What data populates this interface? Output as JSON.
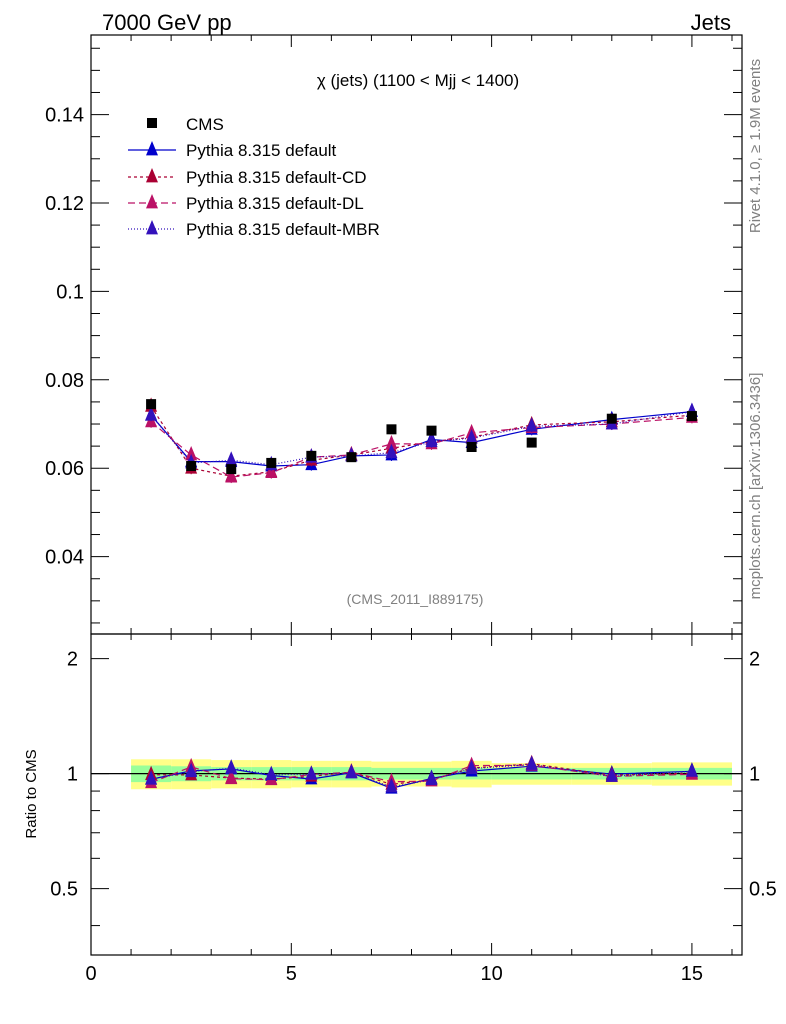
{
  "header": {
    "left": "7000 GeV pp",
    "right": "Jets"
  },
  "side_text": {
    "rivet": "Rivet 4.1.0, ≥ 1.9M events",
    "mcplots": "mcplots.cern.ch [arXiv:1306.3436]"
  },
  "chart_data": {
    "type": "scatter",
    "title": "χ (jets) (1100 < Mjj < 1400)",
    "watermark": "(CMS_2011_I889175)",
    "xlabel": "",
    "ylabel": "",
    "xlim": [
      0,
      16.25
    ],
    "ylim": [
      0.0225,
      0.158
    ],
    "x_ticks": [
      0,
      5,
      10,
      15
    ],
    "y_ticks": [
      0.04,
      0.06,
      0.08,
      0.1,
      0.12,
      0.14
    ],
    "y_tick_labels": [
      "0.04",
      "0.06",
      "0.08",
      "0.1",
      "0.12",
      "0.14"
    ],
    "x_tick_labels": [
      "0",
      "5",
      "10",
      "15"
    ],
    "x": [
      1.5,
      2.5,
      3.5,
      4.5,
      5.5,
      6.5,
      7.5,
      8.5,
      9.5,
      11.0,
      13.0,
      15.0
    ],
    "bin_edges": [
      1,
      2,
      3,
      4,
      5,
      6,
      7,
      8,
      9,
      10,
      12,
      14,
      16
    ],
    "data": {
      "name": "CMS",
      "color": "#000000",
      "values": [
        0.0745,
        0.0605,
        0.0598,
        0.0612,
        0.0628,
        0.0625,
        0.0688,
        0.0685,
        0.0648,
        0.0658,
        0.0712,
        0.0718
      ]
    },
    "series": [
      {
        "name": "Pythia 8.315 default",
        "color": "#0000cc",
        "dash": "",
        "values": [
          0.072,
          0.0615,
          0.0615,
          0.0605,
          0.0608,
          0.0628,
          0.063,
          0.0665,
          0.0658,
          0.0688,
          0.071,
          0.0728
        ]
      },
      {
        "name": "Pythia 8.315 default-CD",
        "color": "#aa0033",
        "dash": "3,3",
        "values": [
          0.074,
          0.06,
          0.0582,
          0.0592,
          0.0618,
          0.063,
          0.0645,
          0.066,
          0.067,
          0.0698,
          0.0705,
          0.072
        ]
      },
      {
        "name": "Pythia 8.315 default-DL",
        "color": "#bb1166",
        "dash": "7,4",
        "values": [
          0.0705,
          0.063,
          0.058,
          0.059,
          0.0625,
          0.063,
          0.0655,
          0.0655,
          0.068,
          0.0692,
          0.07,
          0.0715
        ]
      },
      {
        "name": "Pythia 8.315 default-MBR",
        "color": "#3311bb",
        "dash": "1,2",
        "values": [
          0.072,
          0.0612,
          0.0618,
          0.0608,
          0.0625,
          0.0628,
          0.0635,
          0.066,
          0.0668,
          0.0695,
          0.07,
          0.0728
        ]
      }
    ],
    "ratio": {
      "ylabel": "Ratio to CMS",
      "ylim": [
        0.335,
        2.32
      ],
      "y_ticks": [
        0.5,
        1,
        2
      ],
      "y_tick_labels": [
        "0.5",
        "1",
        "2"
      ],
      "band_inner": [
        0.05,
        0.045,
        0.04,
        0.04,
        0.04,
        0.04,
        0.035,
        0.035,
        0.035,
        0.035,
        0.035,
        0.035
      ],
      "band_outer": [
        0.09,
        0.09,
        0.085,
        0.085,
        0.08,
        0.08,
        0.075,
        0.075,
        0.08,
        0.065,
        0.065,
        0.07
      ]
    }
  }
}
